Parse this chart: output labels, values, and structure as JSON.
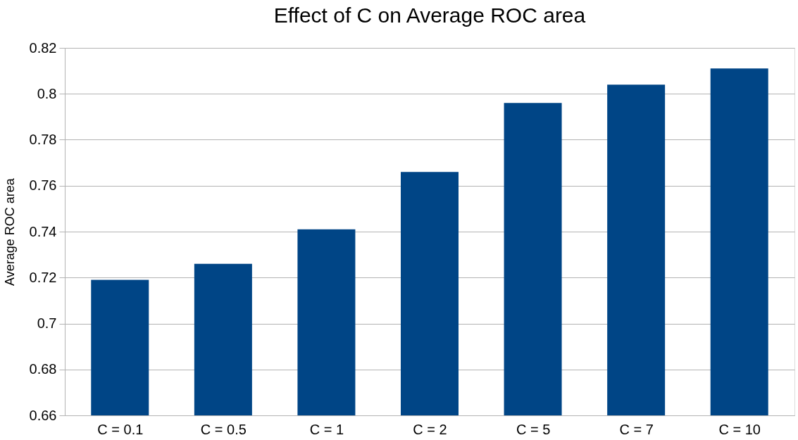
{
  "chart_data": {
    "type": "bar",
    "title": "Effect of C on Average ROC area",
    "ylabel": "Average ROC area",
    "categories": [
      "C = 0.1",
      "C = 0.5",
      "C = 1",
      "C = 2",
      "C = 5",
      "C = 7",
      "C = 10"
    ],
    "values": [
      0.719,
      0.726,
      0.741,
      0.766,
      0.796,
      0.804,
      0.811
    ],
    "color": "#004586",
    "ylim": [
      0.66,
      0.82
    ],
    "yticks": [
      0.66,
      0.68,
      0.7,
      0.72,
      0.74,
      0.76,
      0.78,
      0.8,
      0.82
    ],
    "grid": "y"
  }
}
